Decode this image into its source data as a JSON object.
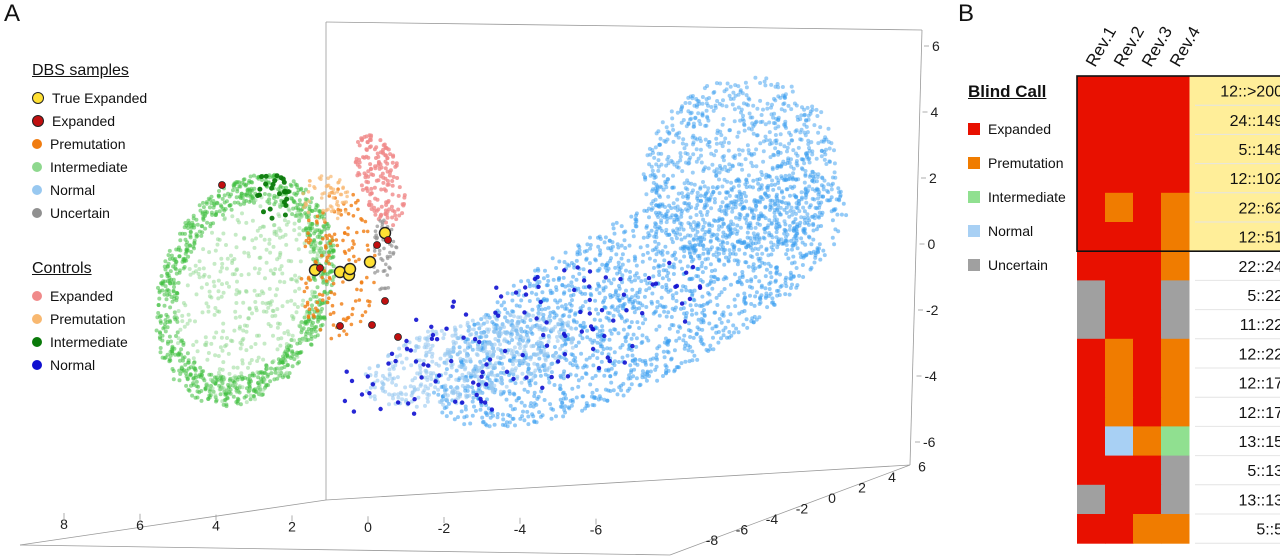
{
  "panel_a_letter": "A",
  "panel_b_letter": "B",
  "colors": {
    "true_expanded": "#ffe033",
    "expanded_dbs": "#c01010",
    "premutation_dbs": "#f07c10",
    "intermediate_dbs": "#8ed88e",
    "normal_dbs": "#98c8f0",
    "uncertain_dbs": "#909090",
    "expanded_ctrl": "#f08a8a",
    "premutation_ctrl": "#f8b870",
    "intermediate_ctrl": "#0a7a0a",
    "normal_ctrl": "#1010d0",
    "cloud_green": "#40c040",
    "cloud_blue": "#3a9ef0",
    "heat_red": "#e81000",
    "heat_orange": "#f07c00",
    "heat_green": "#90e090",
    "heat_blue": "#a8d0f4",
    "heat_gray": "#a0a0a0",
    "highlight": "#ffee99"
  },
  "legend_dbs": {
    "title": "DBS samples",
    "items": [
      {
        "label": "True Expanded",
        "color": "#ffe033",
        "marker": "big"
      },
      {
        "label": "Expanded",
        "color": "#c01010",
        "marker": "big"
      },
      {
        "label": "Premutation",
        "color": "#f07c10",
        "marker": "small"
      },
      {
        "label": "Intermediate",
        "color": "#8ed88e",
        "marker": "small"
      },
      {
        "label": "Normal",
        "color": "#98c8f0",
        "marker": "small"
      },
      {
        "label": "Uncertain",
        "color": "#909090",
        "marker": "small"
      }
    ]
  },
  "legend_controls": {
    "title": "Controls",
    "items": [
      {
        "label": "Expanded",
        "color": "#f08a8a"
      },
      {
        "label": "Premutation",
        "color": "#f8b870"
      },
      {
        "label": "Intermediate",
        "color": "#0a7a0a"
      },
      {
        "label": "Normal",
        "color": "#1010d0"
      }
    ]
  },
  "blind_call_legend": {
    "title": "Blind Call",
    "items": [
      {
        "label": "Expanded",
        "color": "#e81000"
      },
      {
        "label": "Premutation",
        "color": "#f07c00"
      },
      {
        "label": "Intermediate",
        "color": "#90e090"
      },
      {
        "label": "Normal",
        "color": "#a8d0f4"
      },
      {
        "label": "Uncertain",
        "color": "#a0a0a0"
      }
    ]
  },
  "chart_data": [
    {
      "type": "scatter",
      "dimensions": 3,
      "axes": {
        "x_ticks": [
          "8",
          "6",
          "4",
          "2",
          "0",
          "-2",
          "-4",
          "-6"
        ],
        "y_ticks": [
          "-8",
          "-6",
          "-4",
          "-2",
          "0",
          "2",
          "4",
          "6"
        ],
        "z_ticks": [
          "6",
          "4",
          "2",
          "0",
          "-2",
          "-4",
          "-6"
        ]
      },
      "highlighted_samples": [
        {
          "category": "True Expanded",
          "z": -0.9
        },
        {
          "category": "True Expanded",
          "z": -0.9
        },
        {
          "category": "True Expanded",
          "z": -1.0
        },
        {
          "category": "True Expanded",
          "z": -0.9
        },
        {
          "category": "True Expanded",
          "z": -0.7
        },
        {
          "category": "True Expanded",
          "z": 0.2
        },
        {
          "category": "Expanded",
          "z": 1.8
        },
        {
          "category": "Expanded",
          "z": -0.9
        },
        {
          "category": "Expanded",
          "z": -0.3
        },
        {
          "category": "Expanded",
          "z": 0.0
        },
        {
          "category": "Expanded",
          "z": -2.6
        },
        {
          "category": "Expanded",
          "z": -2.5
        },
        {
          "category": "Expanded",
          "z": -2.9
        },
        {
          "category": "Expanded",
          "z": -1.8
        }
      ]
    },
    {
      "type": "heatmap",
      "columns": [
        "Rev.1",
        "Rev.2",
        "Rev.3",
        "Rev.4"
      ],
      "highlighted_rows": 6,
      "rows": [
        {
          "label": "12::>200",
          "calls": [
            "Expanded",
            "Expanded",
            "Expanded",
            "Expanded"
          ]
        },
        {
          "label": "24::149",
          "calls": [
            "Expanded",
            "Expanded",
            "Expanded",
            "Expanded"
          ]
        },
        {
          "label": "5::148",
          "calls": [
            "Expanded",
            "Expanded",
            "Expanded",
            "Expanded"
          ]
        },
        {
          "label": "12::102",
          "calls": [
            "Expanded",
            "Expanded",
            "Expanded",
            "Expanded"
          ]
        },
        {
          "label": "22::62",
          "calls": [
            "Expanded",
            "Premutation",
            "Expanded",
            "Premutation"
          ]
        },
        {
          "label": "12::51",
          "calls": [
            "Expanded",
            "Expanded",
            "Expanded",
            "Premutation"
          ]
        },
        {
          "label": "22::24",
          "calls": [
            "Expanded",
            "Expanded",
            "Expanded",
            "Premutation"
          ]
        },
        {
          "label": "5::22",
          "calls": [
            "Uncertain",
            "Expanded",
            "Expanded",
            "Uncertain"
          ]
        },
        {
          "label": "11::22",
          "calls": [
            "Uncertain",
            "Expanded",
            "Expanded",
            "Uncertain"
          ]
        },
        {
          "label": "12::22",
          "calls": [
            "Expanded",
            "Premutation",
            "Expanded",
            "Premutation"
          ]
        },
        {
          "label": "12::17",
          "calls": [
            "Expanded",
            "Premutation",
            "Expanded",
            "Premutation"
          ]
        },
        {
          "label": "12::17",
          "calls": [
            "Expanded",
            "Premutation",
            "Expanded",
            "Premutation"
          ]
        },
        {
          "label": "13::15",
          "calls": [
            "Expanded",
            "Normal",
            "Premutation",
            "Intermediate"
          ]
        },
        {
          "label": "5::13",
          "calls": [
            "Expanded",
            "Expanded",
            "Expanded",
            "Uncertain"
          ]
        },
        {
          "label": "13::13",
          "calls": [
            "Uncertain",
            "Expanded",
            "Expanded",
            "Uncertain"
          ]
        },
        {
          "label": "5::5",
          "calls": [
            "Expanded",
            "Expanded",
            "Premutation",
            "Premutation"
          ]
        }
      ]
    }
  ]
}
